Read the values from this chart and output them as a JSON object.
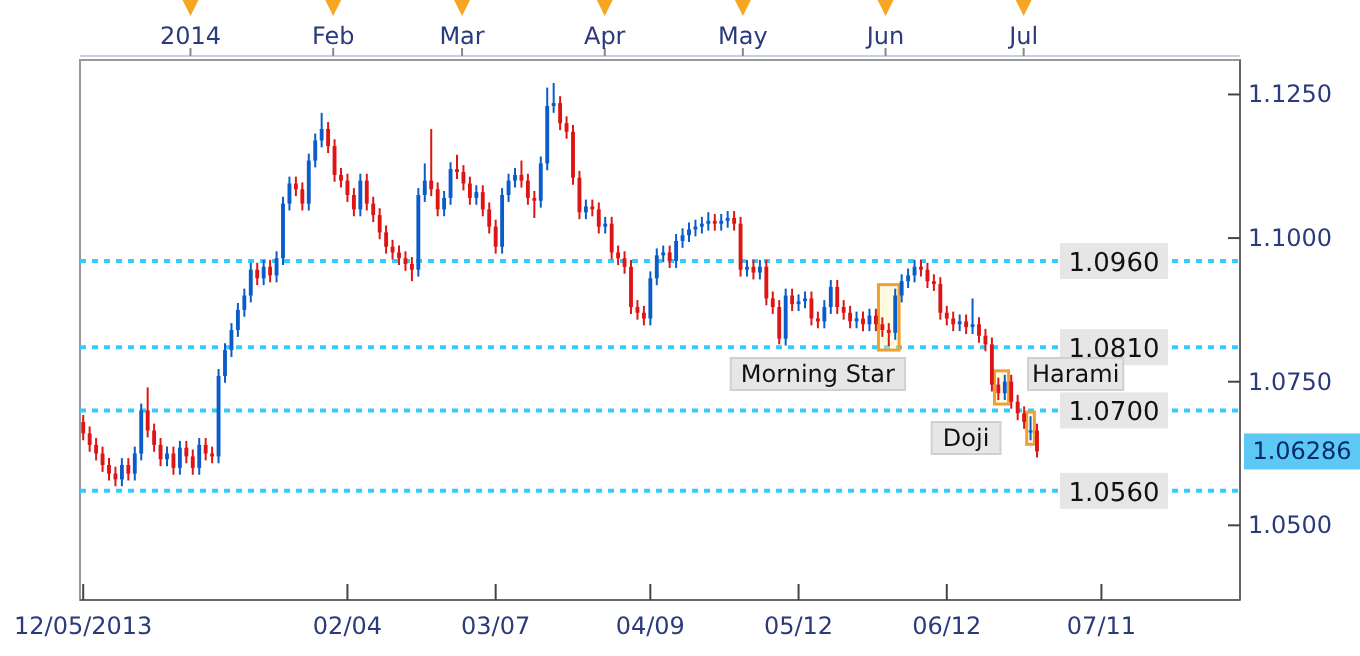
{
  "chart_data": {
    "type": "candlestick",
    "categories": [
      "12/05/2013",
      null,
      null,
      null,
      null,
      null,
      null,
      null,
      null,
      null,
      null,
      null,
      null,
      null,
      null,
      null,
      null,
      null,
      null,
      null,
      null,
      null,
      null,
      null,
      null,
      null,
      null,
      null,
      null,
      null,
      null,
      null,
      null,
      null,
      null,
      null,
      null,
      null,
      null,
      null,
      null,
      "02/04",
      null,
      null,
      null,
      null,
      null,
      null,
      null,
      null,
      null,
      null,
      null,
      null,
      null,
      null,
      null,
      null,
      null,
      null,
      null,
      null,
      null,
      null,
      "03/07",
      null,
      null,
      null,
      null,
      null,
      null,
      null,
      null,
      null,
      null,
      null,
      null,
      null,
      null,
      null,
      null,
      null,
      null,
      null,
      null,
      null,
      null,
      null,
      "04/09",
      null,
      null,
      null,
      null,
      null,
      null,
      null,
      null,
      null,
      null,
      null,
      null,
      null,
      null,
      null,
      null,
      null,
      null,
      null,
      null,
      null,
      null,
      "05/12",
      null,
      null,
      null,
      null,
      null,
      null,
      null,
      null,
      null,
      null,
      null,
      null,
      null,
      null,
      null,
      null,
      null,
      null,
      null,
      null,
      null,
      null,
      "06/12",
      null,
      null,
      null,
      null,
      null,
      null,
      null,
      null,
      null,
      null,
      null,
      null,
      null,
      null,
      null,
      null,
      null,
      null,
      null,
      null,
      null,
      null,
      null,
      "07/11",
      null,
      null,
      null,
      null,
      null,
      null,
      null,
      null,
      null,
      null,
      null,
      null,
      null,
      null,
      null,
      null,
      null,
      null,
      null,
      null,
      null
    ],
    "ohlc": [
      [
        1.068,
        1.0692,
        1.0648,
        1.066
      ],
      [
        1.066,
        1.0672,
        1.0628,
        1.064
      ],
      [
        1.064,
        1.0652,
        1.0613,
        1.0625
      ],
      [
        1.0625,
        1.0637,
        1.0593,
        1.0605
      ],
      [
        1.0605,
        1.0617,
        1.0578,
        1.059
      ],
      [
        1.059,
        1.0602,
        1.0568,
        1.058
      ],
      [
        1.058,
        1.0617,
        1.0568,
        1.0605
      ],
      [
        1.0605,
        1.0617,
        1.0578,
        1.059
      ],
      [
        1.059,
        1.0637,
        1.0578,
        1.0625
      ],
      [
        1.0625,
        1.0712,
        1.0613,
        1.07
      ],
      [
        1.07,
        1.074,
        1.0653,
        1.0665
      ],
      [
        1.0665,
        1.0677,
        1.0628,
        1.064
      ],
      [
        1.064,
        1.0652,
        1.0603,
        1.0615
      ],
      [
        1.0615,
        1.0637,
        1.0603,
        1.0625
      ],
      [
        1.0625,
        1.0637,
        1.0588,
        1.06
      ],
      [
        1.06,
        1.0647,
        1.0588,
        1.0635
      ],
      [
        1.0635,
        1.0647,
        1.0608,
        1.062
      ],
      [
        1.062,
        1.0632,
        1.0588,
        1.06
      ],
      [
        1.06,
        1.0652,
        1.0588,
        1.064
      ],
      [
        1.064,
        1.0652,
        1.0613,
        1.0625
      ],
      [
        1.0625,
        1.0637,
        1.0608,
        1.062
      ],
      [
        1.062,
        1.0772,
        1.0608,
        1.076
      ],
      [
        1.076,
        1.0817,
        1.0748,
        1.0805
      ],
      [
        1.0805,
        1.0852,
        1.0793,
        1.084
      ],
      [
        1.084,
        1.0887,
        1.0828,
        1.0875
      ],
      [
        1.0875,
        1.0912,
        1.0863,
        1.09
      ],
      [
        1.09,
        1.0957,
        1.0888,
        1.0945
      ],
      [
        1.0945,
        1.0957,
        1.0918,
        1.093
      ],
      [
        1.093,
        1.0962,
        1.0918,
        1.095
      ],
      [
        1.095,
        1.0962,
        1.0923,
        1.0935
      ],
      [
        1.0935,
        1.0977,
        1.0923,
        1.0965
      ],
      [
        1.0965,
        1.1072,
        1.0953,
        1.106
      ],
      [
        1.106,
        1.1107,
        1.1048,
        1.1095
      ],
      [
        1.1095,
        1.1107,
        1.1073,
        1.1085
      ],
      [
        1.1085,
        1.1097,
        1.1048,
        1.106
      ],
      [
        1.106,
        1.1147,
        1.1048,
        1.1135
      ],
      [
        1.1135,
        1.1182,
        1.1123,
        1.117
      ],
      [
        1.117,
        1.1218,
        1.1158,
        1.119
      ],
      [
        1.119,
        1.1202,
        1.1148,
        1.116
      ],
      [
        1.116,
        1.1172,
        1.1098,
        1.111
      ],
      [
        1.111,
        1.1122,
        1.1088,
        1.11
      ],
      [
        1.11,
        1.1112,
        1.1063,
        1.1075
      ],
      [
        1.1075,
        1.1087,
        1.1038,
        1.105
      ],
      [
        1.105,
        1.1112,
        1.1038,
        1.11
      ],
      [
        1.11,
        1.1112,
        1.1048,
        1.106
      ],
      [
        1.106,
        1.1072,
        1.1028,
        1.104
      ],
      [
        1.104,
        1.1052,
        1.0998,
        1.101
      ],
      [
        1.101,
        1.1022,
        1.0973,
        1.0985
      ],
      [
        1.0985,
        1.0997,
        1.0963,
        1.0975
      ],
      [
        1.0975,
        1.0987,
        1.0953,
        1.0965
      ],
      [
        1.0965,
        1.0977,
        1.0943,
        1.0955
      ],
      [
        1.0955,
        1.0967,
        1.0925,
        1.0945
      ],
      [
        1.0945,
        1.1087,
        1.0933,
        1.1075
      ],
      [
        1.1075,
        1.113,
        1.1063,
        1.11
      ],
      [
        1.11,
        1.119,
        1.1073,
        1.1085
      ],
      [
        1.1085,
        1.1097,
        1.1038,
        1.105
      ],
      [
        1.105,
        1.1082,
        1.1038,
        1.107
      ],
      [
        1.107,
        1.1132,
        1.1058,
        1.112
      ],
      [
        1.112,
        1.1145,
        1.1103,
        1.1115
      ],
      [
        1.1115,
        1.1127,
        1.1083,
        1.1095
      ],
      [
        1.1095,
        1.1107,
        1.1058,
        1.107
      ],
      [
        1.107,
        1.1092,
        1.1058,
        1.108
      ],
      [
        1.108,
        1.1092,
        1.1038,
        1.105
      ],
      [
        1.105,
        1.1062,
        1.1008,
        1.102
      ],
      [
        1.102,
        1.1032,
        1.0973,
        1.0985
      ],
      [
        1.0985,
        1.1087,
        1.0973,
        1.1075
      ],
      [
        1.1075,
        1.1112,
        1.1063,
        1.11
      ],
      [
        1.11,
        1.1122,
        1.1088,
        1.111
      ],
      [
        1.111,
        1.1135,
        1.1088,
        1.11
      ],
      [
        1.11,
        1.1112,
        1.1058,
        1.107
      ],
      [
        1.107,
        1.1082,
        1.1035,
        1.1065
      ],
      [
        1.1065,
        1.1142,
        1.1053,
        1.113
      ],
      [
        1.113,
        1.1262,
        1.1118,
        1.123
      ],
      [
        1.123,
        1.127,
        1.1218,
        1.1235
      ],
      [
        1.1235,
        1.1247,
        1.1188,
        1.12
      ],
      [
        1.12,
        1.1212,
        1.1173,
        1.1185
      ],
      [
        1.1185,
        1.1197,
        1.1093,
        1.1105
      ],
      [
        1.1105,
        1.1117,
        1.1033,
        1.1045
      ],
      [
        1.1045,
        1.1067,
        1.1033,
        1.1055
      ],
      [
        1.1055,
        1.1067,
        1.1038,
        1.105
      ],
      [
        1.105,
        1.1062,
        1.1008,
        1.102
      ],
      [
        1.102,
        1.1037,
        1.1008,
        1.1025
      ],
      [
        1.1025,
        1.1037,
        1.0963,
        1.0975
      ],
      [
        1.0975,
        1.0987,
        1.0953,
        1.0965
      ],
      [
        1.0965,
        1.0977,
        1.0938,
        1.095
      ],
      [
        1.095,
        1.0962,
        1.0868,
        1.088
      ],
      [
        1.088,
        1.0892,
        1.0858,
        1.087
      ],
      [
        1.087,
        1.0882,
        1.0848,
        1.086
      ],
      [
        1.086,
        1.0942,
        1.0848,
        1.093
      ],
      [
        1.093,
        1.0982,
        1.0918,
        1.097
      ],
      [
        1.097,
        1.0987,
        1.0958,
        1.0975
      ],
      [
        1.0975,
        1.0987,
        1.0948,
        1.096
      ],
      [
        1.096,
        1.1007,
        1.0948,
        1.0995
      ],
      [
        1.0995,
        1.1017,
        1.0983,
        1.1005
      ],
      [
        1.1005,
        1.1027,
        1.0993,
        1.1015
      ],
      [
        1.1015,
        1.1032,
        1.1003,
        1.102
      ],
      [
        1.102,
        1.1037,
        1.1008,
        1.1025
      ],
      [
        1.1025,
        1.1045,
        1.1013,
        1.103
      ],
      [
        1.103,
        1.1042,
        1.1013,
        1.1025
      ],
      [
        1.1025,
        1.1042,
        1.1013,
        1.103
      ],
      [
        1.103,
        1.1047,
        1.1018,
        1.1035
      ],
      [
        1.1035,
        1.1047,
        1.1013,
        1.1025
      ],
      [
        1.1025,
        1.1037,
        1.0933,
        1.0945
      ],
      [
        1.0945,
        1.0962,
        1.0933,
        1.095
      ],
      [
        1.095,
        1.0962,
        1.0928,
        1.094
      ],
      [
        1.094,
        1.0962,
        1.0928,
        1.095
      ],
      [
        1.095,
        1.0962,
        1.0883,
        1.0895
      ],
      [
        1.0895,
        1.0907,
        1.0868,
        1.088
      ],
      [
        1.088,
        1.0892,
        1.0815,
        1.0825
      ],
      [
        1.0825,
        1.0912,
        1.0813,
        1.09
      ],
      [
        1.09,
        1.0912,
        1.0873,
        1.0885
      ],
      [
        1.0885,
        1.0902,
        1.0873,
        1.089
      ],
      [
        1.089,
        1.0907,
        1.0878,
        1.0895
      ],
      [
        1.0895,
        1.0907,
        1.0848,
        1.086
      ],
      [
        1.086,
        1.0872,
        1.0843,
        1.0855
      ],
      [
        1.0855,
        1.0892,
        1.0843,
        1.088
      ],
      [
        1.088,
        1.0927,
        1.0868,
        1.0915
      ],
      [
        1.0915,
        1.0927,
        1.0868,
        1.088
      ],
      [
        1.088,
        1.0892,
        1.0858,
        1.087
      ],
      [
        1.087,
        1.0882,
        1.0843,
        1.0855
      ],
      [
        1.0855,
        1.0872,
        1.0843,
        1.086
      ],
      [
        1.086,
        1.0872,
        1.0838,
        1.085
      ],
      [
        1.085,
        1.0877,
        1.0838,
        1.0865
      ],
      [
        1.0865,
        1.0877,
        1.0838,
        1.085
      ],
      [
        1.085,
        1.0862,
        1.0828,
        1.084
      ],
      [
        1.084,
        1.0852,
        1.0812,
        1.0835
      ],
      [
        1.0835,
        1.0912,
        1.0823,
        1.09
      ],
      [
        1.09,
        1.0937,
        1.0888,
        1.0925
      ],
      [
        1.0925,
        1.0947,
        1.0913,
        1.0935
      ],
      [
        1.0935,
        1.0962,
        1.0923,
        1.095
      ],
      [
        1.095,
        1.0962,
        1.0933,
        1.0945
      ],
      [
        1.0945,
        1.0957,
        1.0913,
        1.0925
      ],
      [
        1.0925,
        1.0937,
        1.0908,
        1.092
      ],
      [
        1.092,
        1.0932,
        1.0858,
        1.087
      ],
      [
        1.087,
        1.0882,
        1.0848,
        1.086
      ],
      [
        1.086,
        1.0872,
        1.0838,
        1.085
      ],
      [
        1.085,
        1.0867,
        1.0838,
        1.0855
      ],
      [
        1.0855,
        1.0867,
        1.0833,
        1.0845
      ],
      [
        1.0845,
        1.0895,
        1.0833,
        1.085
      ],
      [
        1.085,
        1.0862,
        1.0818,
        1.083
      ],
      [
        1.083,
        1.0842,
        1.0803,
        1.0815
      ],
      [
        1.0815,
        1.0827,
        1.0733,
        1.0745
      ],
      [
        1.0745,
        1.0757,
        1.0718,
        1.073
      ],
      [
        1.073,
        1.0762,
        1.0718,
        1.075
      ],
      [
        1.075,
        1.0762,
        1.0703,
        1.0715
      ],
      [
        1.0715,
        1.0727,
        1.0683,
        1.0695
      ],
      [
        1.0695,
        1.0707,
        1.0668,
        1.068
      ],
      [
        1.0663,
        1.069,
        1.0648,
        1.0665
      ],
      [
        1.0665,
        1.0677,
        1.0618,
        1.06286
      ],
      null,
      null,
      null,
      null,
      null,
      null,
      null,
      null,
      null,
      null,
      null,
      null,
      null,
      null,
      null,
      null,
      null,
      null,
      null,
      null,
      null,
      null,
      null,
      null,
      null,
      null,
      null,
      null,
      null,
      null,
      null
    ],
    "ylim": [
      1.037,
      1.131
    ],
    "yticks": [
      {
        "value": 1.05,
        "label": "1.0500"
      },
      {
        "value": 1.075,
        "label": "1.0750"
      },
      {
        "value": 1.1,
        "label": "1.1000"
      },
      {
        "value": 1.125,
        "label": "1.1250"
      }
    ],
    "x2lim": [
      "2013-12-08",
      "2014-08-17"
    ],
    "x2ticks": [
      {
        "value": "2014-01-01",
        "label": "2014"
      },
      {
        "value": "2014-02-01",
        "label": "Feb"
      },
      {
        "value": "2014-03-01",
        "label": "Mar"
      },
      {
        "value": "2014-04-01",
        "label": "Apr"
      },
      {
        "value": "2014-05-01",
        "label": "May"
      },
      {
        "value": "2014-06-01",
        "label": "Jun"
      },
      {
        "value": "2014-07-01",
        "label": "Jul"
      }
    ],
    "ref_lines": [
      {
        "axis": "y",
        "value": 1.096,
        "label": "1.0960",
        "color": "#33ccff",
        "line_style": "dotted"
      },
      {
        "axis": "y",
        "value": 1.081,
        "label": "1.0810",
        "color": "#33ccff",
        "line_style": "dotted"
      },
      {
        "axis": "y",
        "value": 1.07,
        "label": "1.0700",
        "color": "#33ccff",
        "line_style": "dotted"
      },
      {
        "axis": "y",
        "value": 1.056,
        "label": "1.0560",
        "color": "#33ccff",
        "line_style": "dotted"
      }
    ],
    "annotations": [
      "Morning Star",
      "Harami",
      "Doji",
      "1.06286"
    ]
  }
}
